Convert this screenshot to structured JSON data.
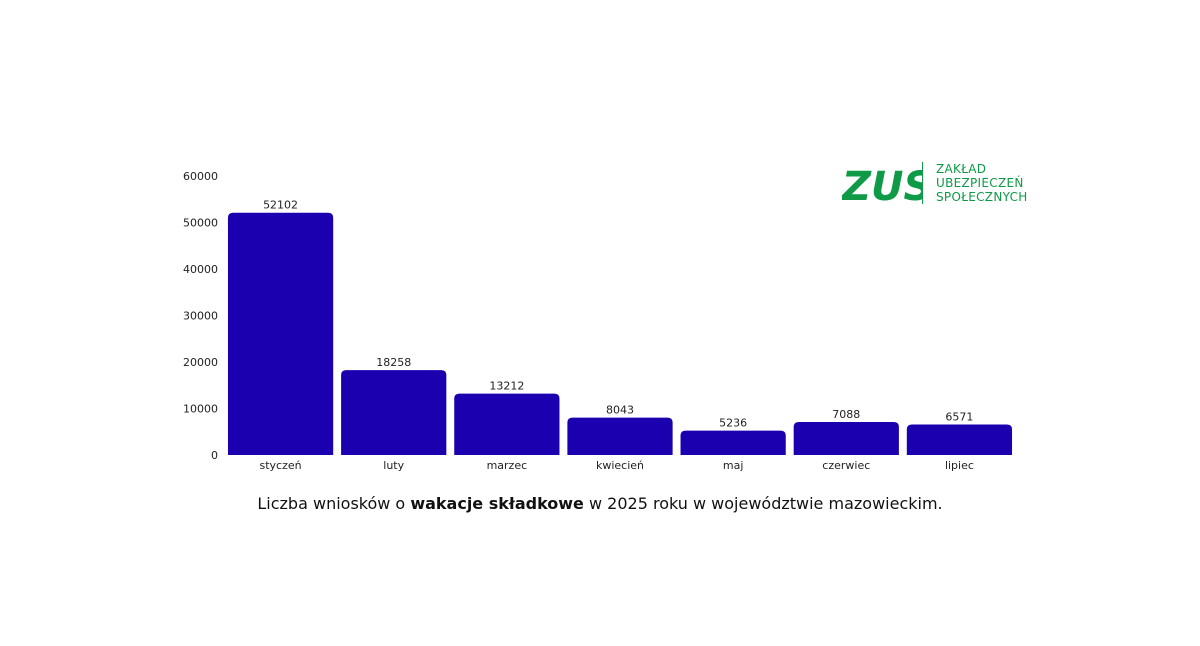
{
  "chart_data": {
    "type": "bar",
    "categories": [
      "styczeń",
      "luty",
      "marzec",
      "kwiecień",
      "maj",
      "czerwiec",
      "lipiec"
    ],
    "values": [
      52102,
      18258,
      13212,
      8043,
      5236,
      7088,
      6571
    ],
    "ylim": [
      0,
      60000
    ],
    "yticks": [
      "0",
      "10000",
      "20000",
      "30000",
      "40000",
      "50000",
      "60000"
    ],
    "bar_color": "#1b00b0",
    "grid": false,
    "legend": "none"
  },
  "caption": {
    "prefix": "Liczba wniosków o ",
    "bold": "wakacje składkowe",
    "suffix": " w 2025 roku w województwie mazowieckim."
  },
  "logo": {
    "mark": "ZUS",
    "lines": [
      "ZAKŁAD",
      "UBEZPIECZEŃ",
      "SPOŁECZNYCH"
    ],
    "color": "#0e9a46"
  }
}
